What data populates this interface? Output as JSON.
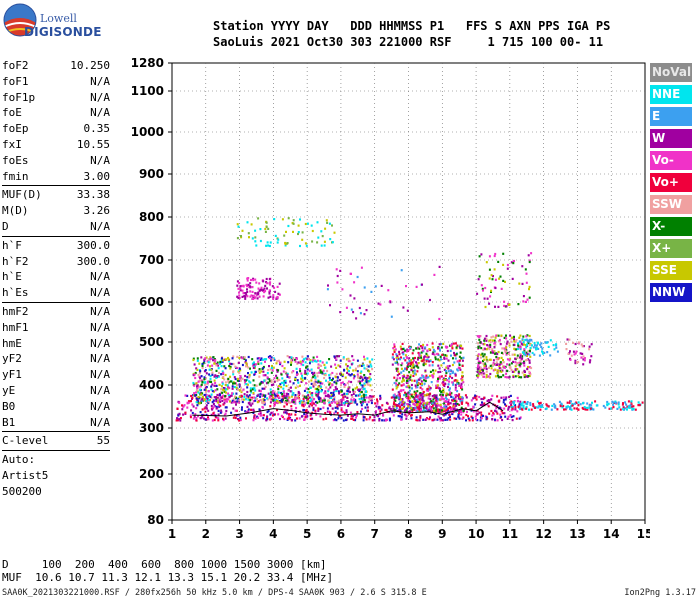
{
  "logo": {
    "brand_top": "Lowell",
    "brand_bottom": "DIGISONDE"
  },
  "header": {
    "line1": "Station YYYY DAY   DDD HHMMSS P1   FFS S AXN PPS IGA PS",
    "line2": "SaoLuis 2021 Oct30 303 221000 RSF     1 715 100 00- 11"
  },
  "params": {
    "group1": [
      {
        "label": "foF2",
        "value": "10.250"
      },
      {
        "label": "foF1",
        "value": "N/A"
      },
      {
        "label": "foF1p",
        "value": "N/A"
      },
      {
        "label": "foE",
        "value": "N/A"
      },
      {
        "label": "foEp",
        "value": "0.35"
      },
      {
        "label": "fxI",
        "value": "10.55"
      },
      {
        "label": "foEs",
        "value": "N/A"
      },
      {
        "label": "fmin",
        "value": "3.00"
      }
    ],
    "group2": [
      {
        "label": "MUF(D)",
        "value": "33.38"
      },
      {
        "label": "M(D)",
        "value": "3.26"
      },
      {
        "label": "D",
        "value": "N/A"
      }
    ],
    "group3": [
      {
        "label": "h`F",
        "value": "300.0"
      },
      {
        "label": "h`F2",
        "value": "300.0"
      },
      {
        "label": "h`E",
        "value": "N/A"
      },
      {
        "label": "h`Es",
        "value": "N/A"
      }
    ],
    "group4": [
      {
        "label": "hmF2",
        "value": "N/A"
      },
      {
        "label": "hmF1",
        "value": "N/A"
      },
      {
        "label": "hmE",
        "value": "N/A"
      },
      {
        "label": "yF2",
        "value": "N/A"
      },
      {
        "label": "yF1",
        "value": "N/A"
      },
      {
        "label": "yE",
        "value": "N/A"
      },
      {
        "label": "B0",
        "value": "N/A"
      },
      {
        "label": "B1",
        "value": "N/A"
      }
    ],
    "group5": [
      {
        "label": "C-level",
        "value": "55"
      }
    ],
    "auto": [
      "Auto:",
      "Artist5",
      "500200"
    ]
  },
  "legend": [
    {
      "label": "NoVal",
      "color": "#8c8c8c"
    },
    {
      "label": "NNE",
      "color": "#00e5ee"
    },
    {
      "label": "E",
      "color": "#3ca0f0"
    },
    {
      "label": "W",
      "color": "#a000a0"
    },
    {
      "label": "Vo-",
      "color": "#f032c8"
    },
    {
      "label": "Vo+",
      "color": "#f0003c"
    },
    {
      "label": "SSW",
      "color": "#f0a0a0"
    },
    {
      "label": "X-",
      "color": "#008000"
    },
    {
      "label": "X+",
      "color": "#78b446"
    },
    {
      "label": "SSE",
      "color": "#c8c800"
    },
    {
      "label": "NNW",
      "color": "#1414c8"
    }
  ],
  "muf_table": {
    "line1": "D     100  200  400  600  800 1000 1500 3000 [km]",
    "line2": "MUF  10.6 10.7 11.3 12.1 13.3 15.1 20.2 33.4 [MHz]"
  },
  "footer": {
    "left": "SAA0K_2021303221000.RSF / 280fx256h 50 kHz 5.0 km / DPS-4 SAA0K 903 / 2.6 S 315.8 E",
    "right": "Ion2Png 1.3.17"
  },
  "chart_data": {
    "type": "scatter",
    "title": "",
    "xlabel": "",
    "ylabel": "",
    "x_ticks": [
      1,
      2,
      3,
      4,
      5,
      6,
      7,
      8,
      9,
      10,
      11,
      12,
      13,
      14,
      15
    ],
    "y_ticks": [
      80,
      200,
      300,
      400,
      500,
      600,
      700,
      800,
      900,
      1000,
      1100,
      1280
    ],
    "xlim": [
      1,
      15
    ],
    "ylim": [
      80,
      1280
    ],
    "y_scale": "virtual-height",
    "grid": true,
    "clusters": [
      {
        "name": "F-trace-base",
        "x": [
          1.1,
          11.3
        ],
        "y": [
          320,
          380
        ],
        "colors": [
          "#f0003c",
          "#a000a0",
          "#1414c8",
          "#f032c8"
        ],
        "density": 900
      },
      {
        "name": "F-trace-upper",
        "x": [
          1.6,
          6.9
        ],
        "y": [
          360,
          470
        ],
        "colors": [
          "#1414c8",
          "#a000a0",
          "#f032c8",
          "#008000",
          "#c8c800",
          "#00e5ee",
          "#f0a0a0"
        ],
        "density": 1100
      },
      {
        "name": "F-trace-mid",
        "x": [
          7.5,
          9.6
        ],
        "y": [
          340,
          500
        ],
        "colors": [
          "#c8c800",
          "#f032c8",
          "#a000a0",
          "#f0003c",
          "#3ca0f0",
          "#008000"
        ],
        "density": 700
      },
      {
        "name": "F2-second-hop",
        "x": [
          10.0,
          11.6
        ],
        "y": [
          420,
          520
        ],
        "colors": [
          "#a000a0",
          "#f032c8",
          "#c8c800",
          "#008000",
          "#f0a0a0"
        ],
        "density": 350
      },
      {
        "name": "nne-tail",
        "x": [
          11.0,
          14.9
        ],
        "y": [
          345,
          365
        ],
        "colors": [
          "#00e5ee",
          "#3ca0f0",
          "#f0003c"
        ],
        "density": 180
      },
      {
        "name": "nne-upper",
        "x": [
          11.2,
          12.4
        ],
        "y": [
          470,
          510
        ],
        "colors": [
          "#00e5ee",
          "#3ca0f0"
        ],
        "density": 60
      },
      {
        "name": "ssw-upper",
        "x": [
          12.6,
          13.4
        ],
        "y": [
          450,
          510
        ],
        "colors": [
          "#a000a0",
          "#f0a0a0",
          "#f032c8"
        ],
        "density": 40
      },
      {
        "name": "mult-hop-1",
        "x": [
          2.9,
          4.2
        ],
        "y": [
          610,
          660
        ],
        "colors": [
          "#a000a0",
          "#f032c8"
        ],
        "density": 110
      },
      {
        "name": "mult-hop-2",
        "x": [
          2.9,
          5.8
        ],
        "y": [
          735,
          800
        ],
        "colors": [
          "#c8c800",
          "#78b446",
          "#00e5ee"
        ],
        "density": 80
      },
      {
        "name": "mid-scatter",
        "x": [
          5.5,
          9.1
        ],
        "y": [
          560,
          690
        ],
        "colors": [
          "#a000a0",
          "#f032c8",
          "#3ca0f0"
        ],
        "density": 45
      },
      {
        "name": "f2-high",
        "x": [
          10.0,
          11.6
        ],
        "y": [
          590,
          720
        ],
        "colors": [
          "#008000",
          "#a000a0",
          "#c8c800",
          "#f032c8"
        ],
        "density": 70
      }
    ],
    "curve": {
      "name": "trace-line",
      "x": [
        1.6,
        2.6,
        3.3,
        4.0,
        4.6,
        5.0,
        5.5,
        6.0,
        6.5,
        7.0,
        7.5,
        8.0,
        8.6,
        9.0,
        9.6,
        10.0,
        10.4,
        10.8
      ],
      "y": [
        330,
        328,
        335,
        345,
        340,
        335,
        332,
        330,
        333,
        330,
        340,
        335,
        338,
        332,
        345,
        340,
        360,
        340
      ]
    }
  }
}
